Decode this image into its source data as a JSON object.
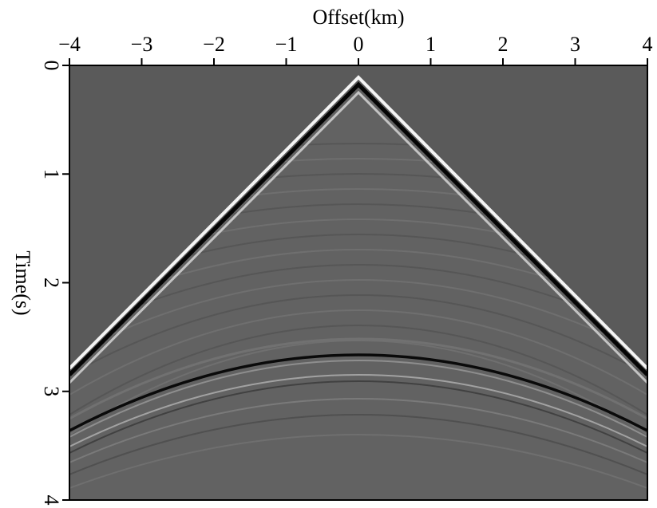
{
  "chart_data": {
    "type": "image",
    "xlabel": "Offset(km)",
    "ylabel": "Time(s)",
    "xlim": [
      -4,
      4
    ],
    "xticks": [
      {
        "value": -4,
        "label": "−4"
      },
      {
        "value": -3,
        "label": "−3"
      },
      {
        "value": -2,
        "label": "−2"
      },
      {
        "value": -1,
        "label": "−1"
      },
      0,
      1,
      2,
      3,
      4
    ],
    "ylim": [
      0,
      4
    ],
    "yticks": [
      0,
      1,
      2,
      3,
      4
    ],
    "y_inverted": true,
    "xaxis_position": "top"
  }
}
